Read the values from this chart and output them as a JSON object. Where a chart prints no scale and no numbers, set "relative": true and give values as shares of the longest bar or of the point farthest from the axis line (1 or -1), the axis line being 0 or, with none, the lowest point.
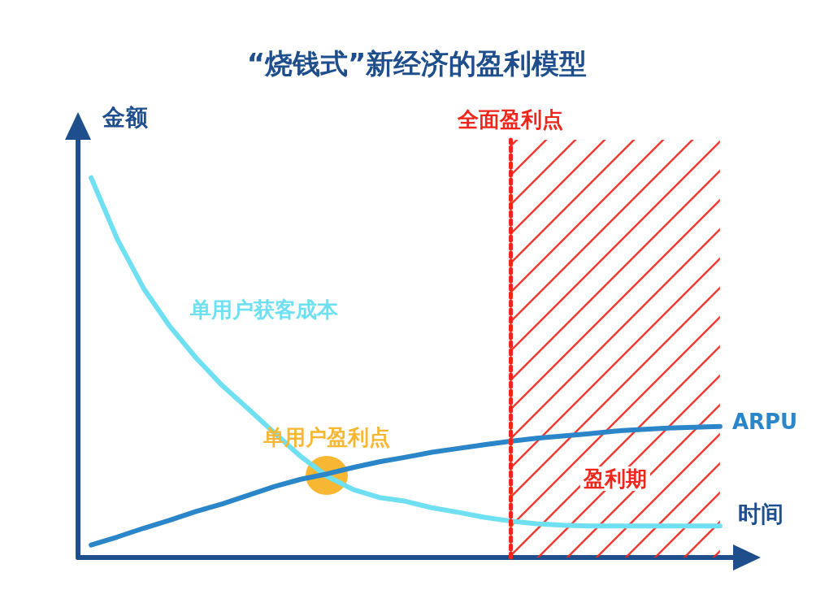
{
  "chart_data": {
    "type": "line",
    "title": "“烧钱式”新经济的盈利模型",
    "xlabel": "时间",
    "ylabel": "金额",
    "relative": true,
    "categories": [
      null,
      null,
      null,
      null,
      null,
      null,
      null,
      null,
      null,
      null,
      null,
      null,
      null,
      null,
      null,
      null,
      null,
      null,
      null,
      null,
      null,
      null,
      null,
      null,
      null
    ],
    "series": [
      {
        "name": "单用户获客成本",
        "color": "#6fdff2",
        "values": [
          1,
          0.838,
          0.709,
          0.609,
          0.526,
          0.453,
          0.391,
          0.328,
          0.266,
          0.214,
          0.179,
          0.158,
          0.148,
          0.131,
          0.119,
          0.106,
          0.096,
          0.089,
          0.085,
          0.083,
          0.083,
          0.083,
          0.083,
          0.083,
          0.083
        ]
      },
      {
        "name": "ARPU",
        "color": "#2b86c9",
        "values": [
          0.033,
          0.054,
          0.077,
          0.098,
          0.121,
          0.141,
          0.164,
          0.187,
          0.206,
          0.22,
          0.237,
          0.252,
          0.264,
          0.277,
          0.287,
          0.297,
          0.306,
          0.314,
          0.32,
          0.326,
          0.333,
          0.337,
          0.341,
          0.343,
          0.345
        ]
      }
    ],
    "annotations": [
      "单用户盈利点",
      "全面盈利点",
      "盈利期"
    ],
    "grid": false,
    "marker": "none",
    "line_style": "solid"
  }
}
